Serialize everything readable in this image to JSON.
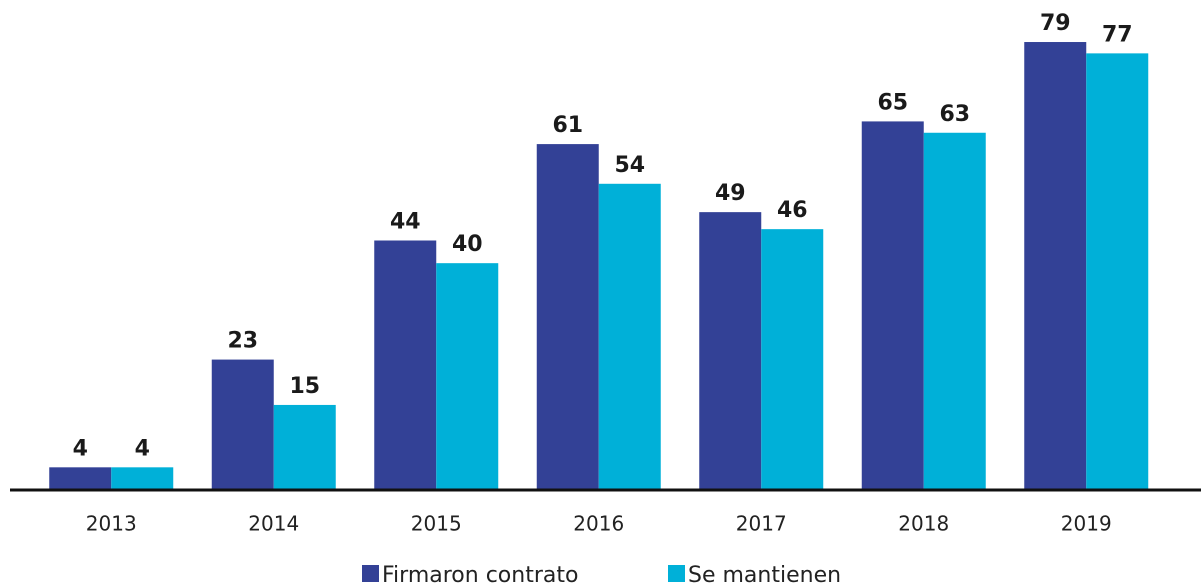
{
  "chart_data": {
    "type": "bar",
    "categories": [
      "2013",
      "2014",
      "2015",
      "2016",
      "2017",
      "2018",
      "2019"
    ],
    "series": [
      {
        "name": "Firmaron contrato",
        "color": "#334196",
        "values": [
          4,
          23,
          44,
          61,
          49,
          65,
          79
        ]
      },
      {
        "name": "Se mantienen",
        "color": "#00b0d8",
        "values": [
          4,
          15,
          40,
          54,
          46,
          63,
          77
        ]
      }
    ],
    "ylim": [
      0,
      85
    ]
  }
}
